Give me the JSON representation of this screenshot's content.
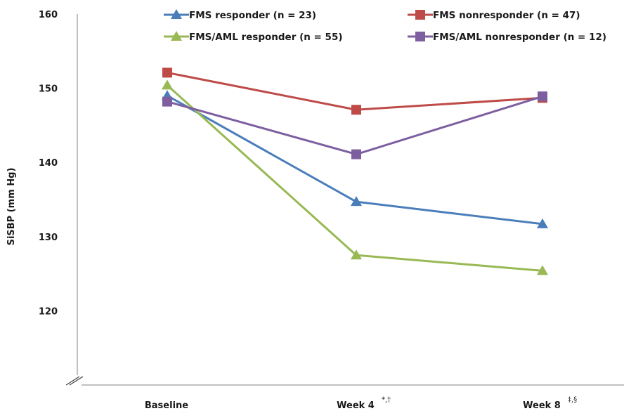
{
  "chart_data": {
    "type": "line",
    "categories": [
      "Baseline",
      "Week 4",
      "Week 8"
    ],
    "category_superscripts": [
      "",
      "*,†",
      "‡,§"
    ],
    "ylabel": "SiSBP (mm Hg)",
    "ylim": [
      110,
      160
    ],
    "yticks": [
      120,
      130,
      140,
      150,
      160
    ],
    "ytick_labels": [
      "120",
      "130",
      "140",
      "150",
      "160"
    ],
    "axis_break": true,
    "grid": false,
    "legend_position": "top",
    "series": [
      {
        "name": "FMS responder (n = 23)",
        "values": [
          149.0,
          134.7,
          131.7
        ],
        "color": "#4a7ebb",
        "marker": "triangle"
      },
      {
        "name": "FMS nonresponder (n = 47)",
        "values": [
          152.1,
          147.1,
          148.7
        ],
        "color": "#be4b48",
        "marker": "square"
      },
      {
        "name": "FMS/AML responder (n = 55)",
        "values": [
          150.4,
          127.5,
          125.4
        ],
        "color": "#98b954",
        "marker": "triangle"
      },
      {
        "name": "FMS/AML nonresponder (n = 12)",
        "values": [
          148.2,
          141.1,
          148.9
        ],
        "color": "#7d5fa0",
        "marker": "square"
      }
    ]
  }
}
